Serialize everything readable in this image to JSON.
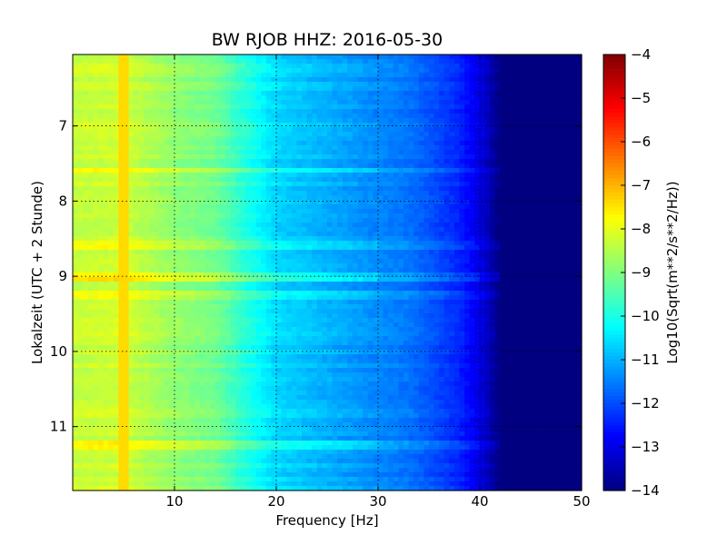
{
  "chart_data": {
    "type": "heatmap",
    "title": "BW RJOB HHZ: 2016-05-30",
    "xlabel": "Frequency [Hz]",
    "ylabel": "Lokalzeit (UTC + 2 Stunde)",
    "xlim": [
      0,
      50
    ],
    "ylim": [
      11.85,
      6.05
    ],
    "y_inverted": true,
    "x_ticks": [
      10,
      20,
      30,
      40,
      50
    ],
    "x_tick_labels": [
      "10",
      "20",
      "30",
      "40",
      "50"
    ],
    "y_ticks": [
      7,
      8,
      9,
      10,
      11
    ],
    "y_tick_labels": [
      "7",
      "8",
      "9",
      "10",
      "11"
    ],
    "grid": true,
    "colormap": "jet",
    "colorbar": {
      "label": "Log10(Sqrt(m**2/s**2/Hz))",
      "range": [
        -14,
        -4
      ],
      "ticks": [
        -4,
        -5,
        -6,
        -7,
        -8,
        -9,
        -10,
        -11,
        -12,
        -13,
        -14
      ],
      "tick_labels": [
        "−4",
        "−5",
        "−6",
        "−7",
        "−8",
        "−9",
        "−10",
        "−11",
        "−12",
        "−13",
        "−14"
      ]
    },
    "spectrum_profile": {
      "frequency_hz": [
        0,
        5,
        10,
        14,
        17,
        20,
        25,
        30,
        33,
        35,
        38,
        40,
        42,
        45,
        50
      ],
      "log10_amplitude": [
        -8.3,
        -8.2,
        -8.8,
        -9.1,
        -9.9,
        -10.6,
        -11.0,
        -11.4,
        -11.6,
        -11.9,
        -12.4,
        -13.0,
        -14.0,
        -14.0,
        -14.0
      ]
    },
    "features": [
      {
        "type": "vertical_line",
        "frequency_hz": 5.0,
        "log10_amplitude": -7.4
      },
      {
        "type": "horizontal_band",
        "time": 7.6,
        "delta": 0.6
      },
      {
        "type": "horizontal_band",
        "time": 8.6,
        "delta": 0.4
      },
      {
        "type": "horizontal_band",
        "time": 9.0,
        "delta": 0.7
      },
      {
        "type": "horizontal_band",
        "time": 9.25,
        "delta": 0.5
      },
      {
        "type": "horizontal_band",
        "time": 11.25,
        "delta": 0.5
      }
    ]
  }
}
